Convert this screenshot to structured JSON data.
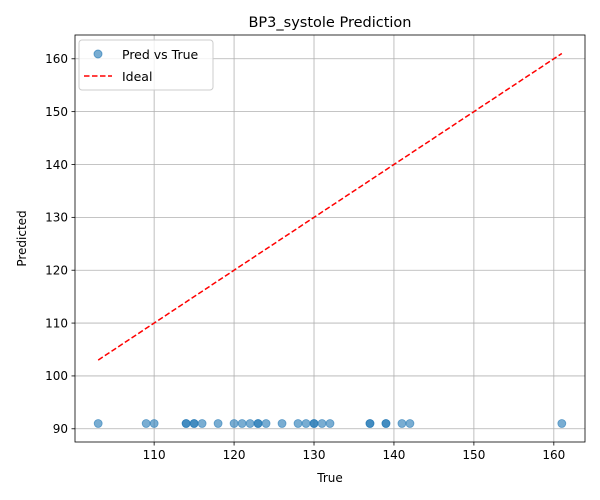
{
  "chart_data": {
    "type": "scatter",
    "title": "BP3_systole Prediction",
    "xlabel": "True",
    "ylabel": "Predicted",
    "xlim": [
      100.1,
      163.9
    ],
    "ylim": [
      87.5,
      164.5
    ],
    "xticks": [
      110,
      120,
      130,
      140,
      150,
      160
    ],
    "yticks": [
      90,
      100,
      110,
      120,
      130,
      140,
      150,
      160
    ],
    "grid": true,
    "legend_position": "top-left",
    "series": [
      {
        "name": "Pred vs True",
        "kind": "scatter",
        "color": "#1f77b4",
        "points": [
          {
            "x": 103,
            "y": 91
          },
          {
            "x": 109,
            "y": 91
          },
          {
            "x": 110,
            "y": 91
          },
          {
            "x": 114,
            "y": 91
          },
          {
            "x": 114,
            "y": 91
          },
          {
            "x": 115,
            "y": 91
          },
          {
            "x": 115,
            "y": 91
          },
          {
            "x": 116,
            "y": 91
          },
          {
            "x": 118,
            "y": 91
          },
          {
            "x": 120,
            "y": 91
          },
          {
            "x": 121,
            "y": 91
          },
          {
            "x": 122,
            "y": 91
          },
          {
            "x": 123,
            "y": 91
          },
          {
            "x": 123,
            "y": 91
          },
          {
            "x": 124,
            "y": 91
          },
          {
            "x": 126,
            "y": 91
          },
          {
            "x": 128,
            "y": 91
          },
          {
            "x": 129,
            "y": 91
          },
          {
            "x": 130,
            "y": 91
          },
          {
            "x": 130,
            "y": 91
          },
          {
            "x": 131,
            "y": 91
          },
          {
            "x": 132,
            "y": 91
          },
          {
            "x": 137,
            "y": 91
          },
          {
            "x": 137,
            "y": 91
          },
          {
            "x": 139,
            "y": 91
          },
          {
            "x": 139,
            "y": 91
          },
          {
            "x": 141,
            "y": 91
          },
          {
            "x": 142,
            "y": 91
          },
          {
            "x": 161,
            "y": 91
          }
        ]
      },
      {
        "name": "Ideal",
        "kind": "line",
        "style": "dashed",
        "color": "#ff0000",
        "points": [
          {
            "x": 103,
            "y": 103
          },
          {
            "x": 161,
            "y": 161
          }
        ]
      }
    ]
  }
}
